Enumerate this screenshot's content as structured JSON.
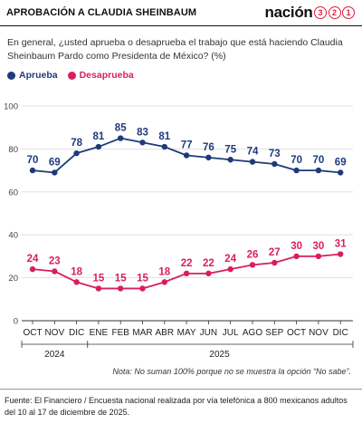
{
  "header": {
    "title": "APROBACIÓN A CLAUDIA SHEINBAUM",
    "brand_word": "nación",
    "brand_digits": [
      "3",
      "2",
      "1"
    ]
  },
  "question": "En general, ¿usted aprueba o desaprueba el trabajo que está haciendo Claudia Sheinbaum Pardo como Presidenta de México?  (%)",
  "legend": [
    {
      "label": "Aprueba",
      "color": "#1f3a7a"
    },
    {
      "label": "Desaprueba",
      "color": "#d81f5d"
    }
  ],
  "note": "Nota: No suman 100% porque no se muestra la opción “No sabe”.",
  "source": "Fuente: El Financiero / Encuesta nacional realizada por vía telefónica a 800 mexicanos adultos del 10 al 17 de diciembre de 2025.",
  "chart_data": {
    "type": "line",
    "categories": [
      "OCT",
      "NOV",
      "DIC",
      "ENE",
      "FEB",
      "MAR",
      "ABR",
      "MAY",
      "JUN",
      "JUL",
      "AGO",
      "SEP",
      "OCT",
      "NOV",
      "DIC"
    ],
    "year_groups": [
      {
        "label": "2024",
        "from": 0,
        "to": 2
      },
      {
        "label": "2025",
        "from": 3,
        "to": 14
      }
    ],
    "series": [
      {
        "name": "Aprueba",
        "color": "#1f3a7a",
        "values": [
          70,
          69,
          78,
          81,
          85,
          83,
          81,
          77,
          76,
          75,
          74,
          73,
          70,
          70,
          69
        ]
      },
      {
        "name": "Desaprueba",
        "color": "#d81f5d",
        "values": [
          24,
          23,
          18,
          15,
          15,
          15,
          18,
          22,
          22,
          24,
          26,
          27,
          30,
          30,
          31
        ]
      }
    ],
    "yticks": [
      0,
      20,
      40,
      60,
      80,
      100
    ],
    "ylim": [
      0,
      100
    ],
    "grid": true
  }
}
